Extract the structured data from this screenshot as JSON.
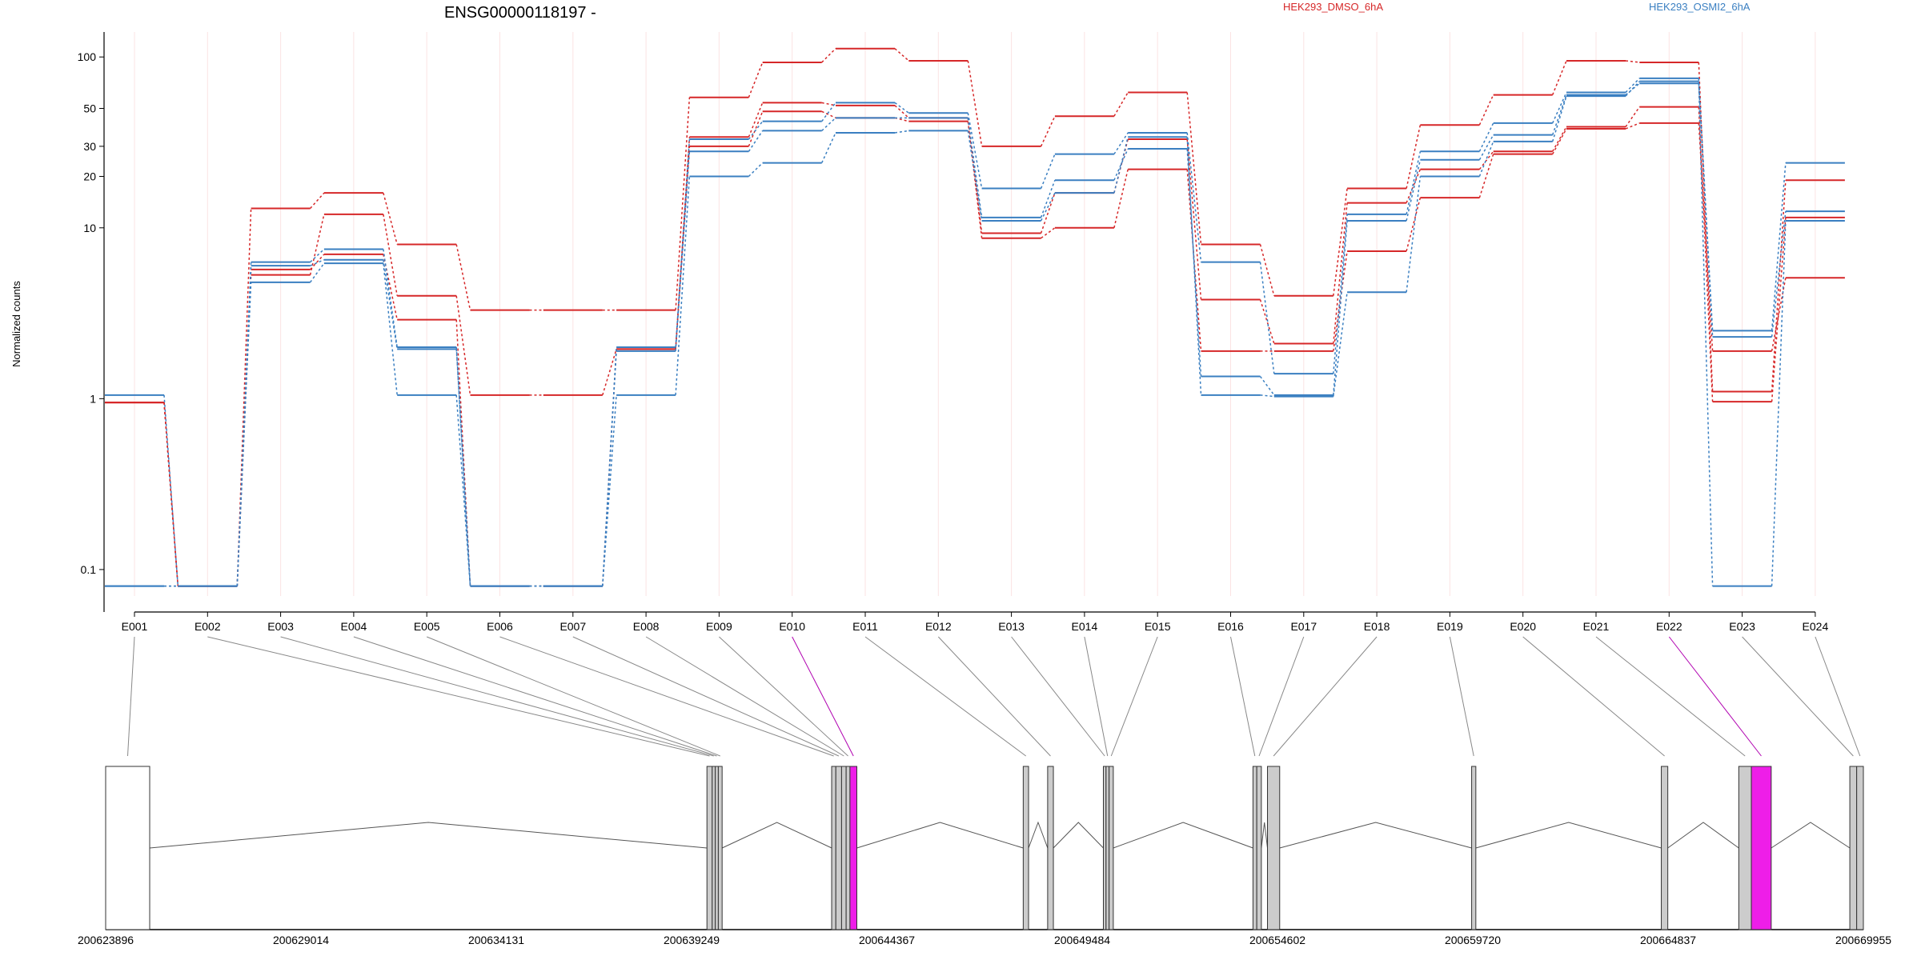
{
  "chart_data": {
    "type": "line",
    "title": "ENSG00000118197 -",
    "ylabel": "Normalized counts",
    "y_scale": "log",
    "ylim": [
      0.07,
      140
    ],
    "y_ticks": [
      {
        "value": 0.1,
        "label": "0.1"
      },
      {
        "value": 1,
        "label": "1"
      },
      {
        "value": 10,
        "label": "10"
      },
      {
        "value": 20,
        "label": "20"
      },
      {
        "value": 30,
        "label": "30"
      },
      {
        "value": 50,
        "label": "50"
      },
      {
        "value": 100,
        "label": "100"
      }
    ],
    "legend": [
      {
        "label": "HEK293_DMSO_6hA",
        "color": "#d62728"
      },
      {
        "label": "HEK293_OSMI2_6hA",
        "color": "#3a7fc1"
      }
    ],
    "categories": [
      "E001",
      "E002",
      "E003",
      "E004",
      "E005",
      "E006",
      "E007",
      "E008",
      "E009",
      "E010",
      "E011",
      "E012",
      "E013",
      "E014",
      "E015",
      "E016",
      "E017",
      "E018",
      "E019",
      "E020",
      "E021",
      "E022",
      "E023",
      "E024"
    ],
    "series": [
      {
        "group": "HEK293_DMSO_6hA",
        "color": "#d62728",
        "values": [
          0.95,
          0.08,
          13,
          16,
          8,
          3.3,
          3.3,
          3.3,
          58,
          93,
          112,
          95,
          30,
          45,
          62,
          8,
          4,
          17,
          40,
          60,
          95,
          93,
          1.1,
          19
        ]
      },
      {
        "group": "HEK293_DMSO_6hA",
        "color": "#d62728",
        "values": [
          0.95,
          0.08,
          5.3,
          12,
          4,
          1.05,
          1.05,
          1.95,
          34,
          54,
          52,
          44,
          9.3,
          16,
          33,
          3.8,
          2.1,
          14,
          22,
          28,
          39,
          51,
          0.96,
          11.5
        ]
      },
      {
        "group": "HEK293_DMSO_6hA",
        "color": "#d62728",
        "values": [
          0.95,
          0.08,
          5.7,
          7,
          2.9,
          0.08,
          0.08,
          1.95,
          30,
          48,
          44,
          42,
          8.7,
          10,
          22,
          1.9,
          1.9,
          7.3,
          15,
          27,
          38,
          41,
          1.9,
          5.1
        ]
      },
      {
        "group": "HEK293_OSMI2_6hA",
        "color": "#3a7fc1",
        "values": [
          1.05,
          0.08,
          6.3,
          7.5,
          2,
          0.08,
          0.08,
          2,
          33,
          42,
          54,
          47,
          17,
          27,
          36,
          6.3,
          1.4,
          12,
          28,
          41,
          62,
          75,
          2.5,
          24
        ]
      },
      {
        "group": "HEK293_OSMI2_6hA",
        "color": "#3a7fc1",
        "values": [
          0.08,
          0.08,
          6,
          6.5,
          1.95,
          0.08,
          0.08,
          1.9,
          28,
          37,
          44,
          44,
          11.5,
          19,
          29,
          1.35,
          1.05,
          11,
          25,
          35,
          60,
          70,
          2.3,
          12.5
        ]
      },
      {
        "group": "HEK293_OSMI2_6hA",
        "color": "#3a7fc1",
        "values": [
          0.08,
          0.08,
          4.8,
          6.2,
          1.05,
          0.08,
          0.08,
          1.05,
          20,
          24,
          36,
          37,
          11,
          16,
          34,
          1.05,
          1.03,
          4.2,
          20,
          32,
          59,
          72,
          0.08,
          11
        ]
      }
    ],
    "gene_model": {
      "coordinate_labels": [
        "200623896",
        "200629014",
        "200634131",
        "200639249",
        "200644367",
        "200649484",
        "200654602",
        "200659720",
        "200664837",
        "200669955"
      ],
      "coordinate_range": [
        200623896,
        200669955
      ],
      "highlighted_exons": [
        "E010",
        "E022"
      ],
      "highlight_color": "#ee1ee8",
      "exon_color": "#cccccc"
    }
  }
}
